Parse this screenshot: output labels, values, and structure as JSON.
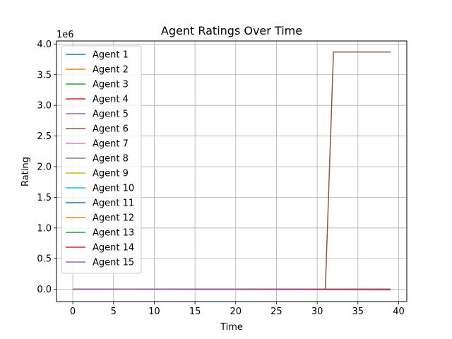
{
  "chart_data": {
    "type": "line",
    "title": "Agent Ratings Over Time",
    "xlabel": "Time",
    "ylabel": "Rating",
    "y_offset_text": "1e6",
    "xlim": [
      -2,
      41
    ],
    "ylim": [
      -0.2,
      4.05
    ],
    "x_ticks": [
      0,
      5,
      10,
      15,
      20,
      25,
      30,
      35,
      40
    ],
    "y_ticks": [
      0.0,
      0.5,
      1.0,
      1.5,
      2.0,
      2.5,
      3.0,
      3.5,
      4.0
    ],
    "x_tick_labels": [
      "0",
      "5",
      "10",
      "15",
      "20",
      "25",
      "30",
      "35",
      "40"
    ],
    "y_tick_labels": [
      "0.0",
      "0.5",
      "1.0",
      "1.5",
      "2.0",
      "2.5",
      "3.0",
      "3.5",
      "4.0"
    ],
    "grid": true,
    "legend_position": "upper-left",
    "series": [
      {
        "name": "Agent 1",
        "color": "#1f77b4",
        "points": [
          [
            0,
            0.0
          ],
          [
            39,
            0.0
          ]
        ]
      },
      {
        "name": "Agent 2",
        "color": "#ff7f0e",
        "points": [
          [
            0,
            0.0
          ],
          [
            39,
            0.0
          ]
        ]
      },
      {
        "name": "Agent 3",
        "color": "#2ca02c",
        "points": [
          [
            0,
            0.0
          ],
          [
            39,
            0.0
          ]
        ]
      },
      {
        "name": "Agent 4",
        "color": "#d62728",
        "points": [
          [
            0,
            0.0
          ],
          [
            39,
            0.0
          ]
        ]
      },
      {
        "name": "Agent 5",
        "color": "#9467bd",
        "points": [
          [
            0,
            0.0
          ],
          [
            39,
            0.0
          ]
        ]
      },
      {
        "name": "Agent 6",
        "color": "#8c564b",
        "points": [
          [
            0,
            0.0
          ],
          [
            31,
            0.0
          ],
          [
            32,
            3.87
          ],
          [
            39,
            3.87
          ]
        ]
      },
      {
        "name": "Agent 7",
        "color": "#e377c2",
        "points": [
          [
            0,
            0.0
          ],
          [
            39,
            0.0
          ]
        ]
      },
      {
        "name": "Agent 8",
        "color": "#7f7f7f",
        "points": [
          [
            0,
            0.0
          ],
          [
            39,
            0.0
          ]
        ]
      },
      {
        "name": "Agent 9",
        "color": "#bcbd22",
        "points": [
          [
            0,
            0.0
          ],
          [
            39,
            0.0
          ]
        ]
      },
      {
        "name": "Agent 10",
        "color": "#17becf",
        "points": [
          [
            0,
            0.0
          ],
          [
            39,
            0.0
          ]
        ]
      },
      {
        "name": "Agent 11",
        "color": "#1f77b4",
        "points": [
          [
            0,
            0.0
          ],
          [
            39,
            0.0
          ]
        ]
      },
      {
        "name": "Agent 12",
        "color": "#ff7f0e",
        "points": [
          [
            0,
            0.0
          ],
          [
            39,
            0.0
          ]
        ]
      },
      {
        "name": "Agent 13",
        "color": "#2ca02c",
        "points": [
          [
            0,
            0.0
          ],
          [
            39,
            0.0
          ]
        ]
      },
      {
        "name": "Agent 14",
        "color": "#d62728",
        "points": [
          [
            0,
            0.0
          ],
          [
            39,
            0.0
          ]
        ]
      },
      {
        "name": "Agent 15",
        "color": "#9467bd",
        "points": [
          [
            0,
            0.0
          ],
          [
            39,
            -0.01
          ]
        ]
      }
    ]
  }
}
